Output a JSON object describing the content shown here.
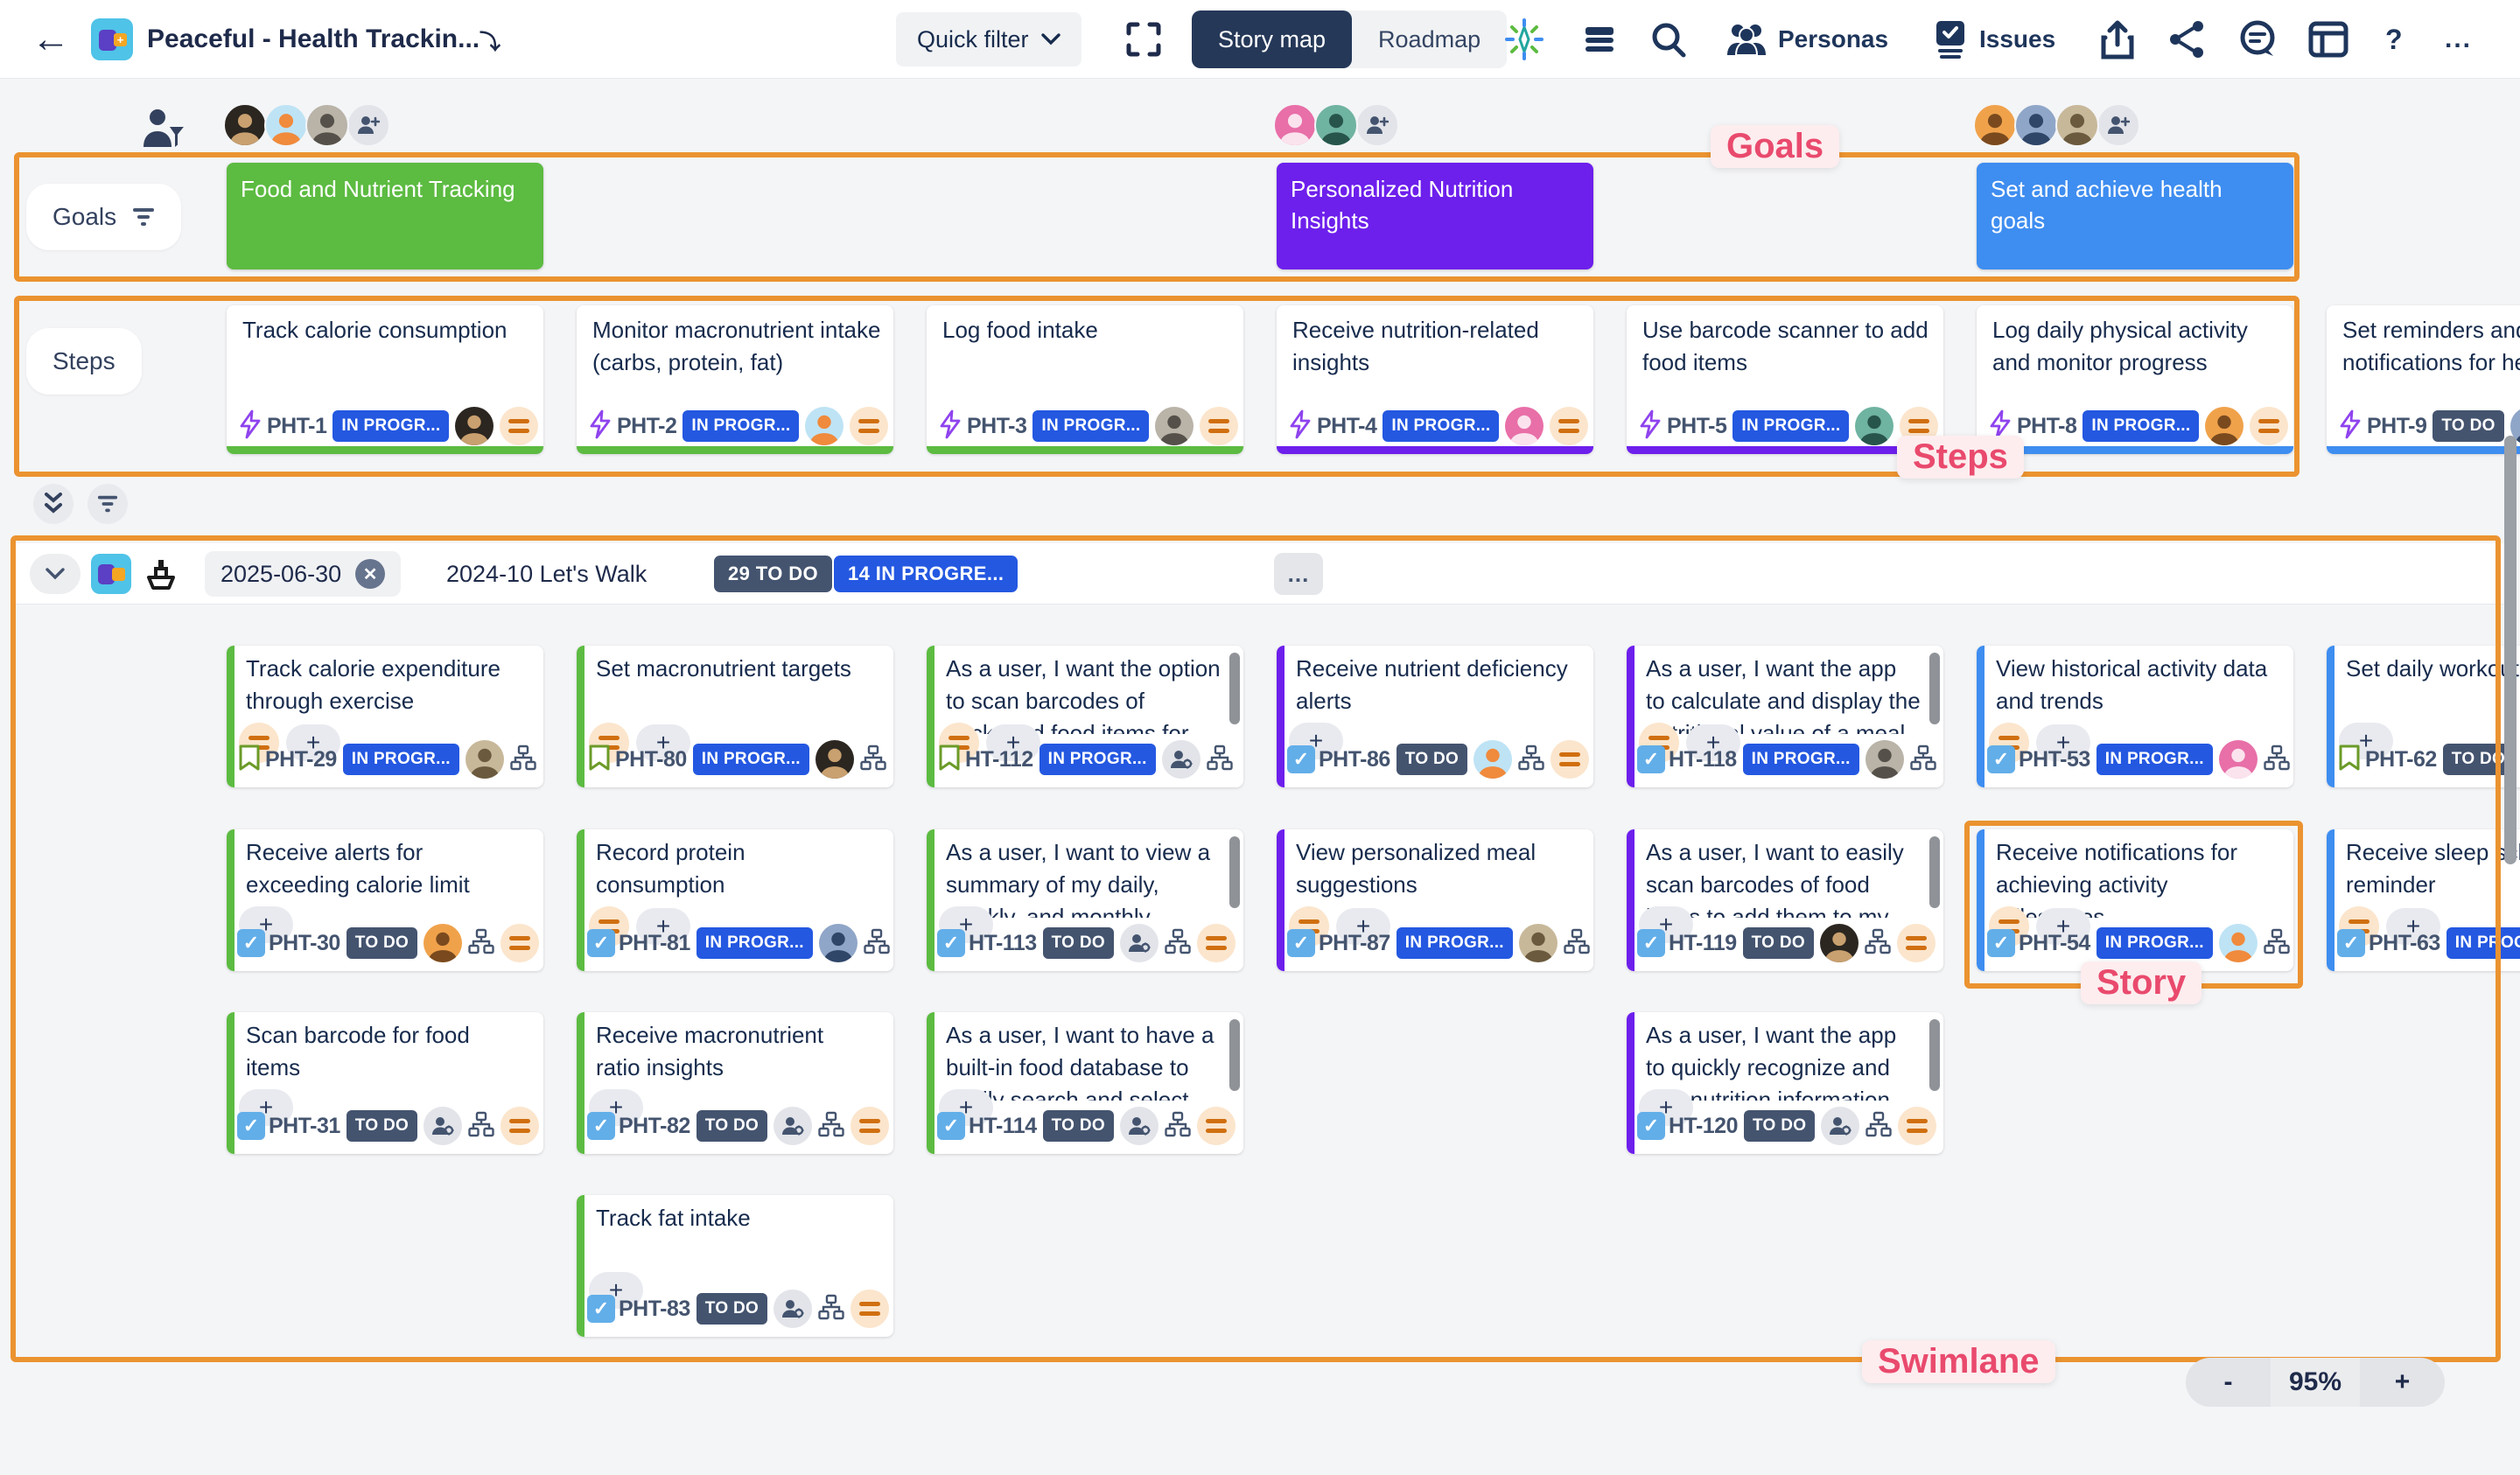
{
  "topbar": {
    "title": "Peaceful - Health Trackin...",
    "quick_filter": "Quick filter",
    "view_toggle": {
      "story_map": "Story map",
      "roadmap": "Roadmap"
    },
    "personas": "Personas",
    "issues": "Issues",
    "help": "?",
    "more": "..."
  },
  "board": {
    "goals_row_label": "Goals",
    "steps_row_label": "Steps",
    "goals": [
      {
        "title": "Food and Nutrient Tracking",
        "color": "green",
        "col": 1,
        "avatars": 3
      },
      {
        "title": "Personalized Nutrition Insights",
        "color": "purple",
        "col": 4,
        "avatars": 2
      },
      {
        "title": "Set and achieve health goals",
        "color": "blue",
        "col": 6,
        "avatars": 3
      }
    ],
    "steps": [
      {
        "col": 1,
        "title": "Track calorie consumption",
        "id": "PHT-1",
        "status": "IN PROGR...",
        "status_type": "inprogress",
        "color": "green"
      },
      {
        "col": 2,
        "title": "Monitor macronutrient intake (carbs, protein, fat)",
        "id": "PHT-2",
        "status": "IN PROGR...",
        "status_type": "inprogress",
        "color": "green"
      },
      {
        "col": 3,
        "title": "Log food intake",
        "id": "PHT-3",
        "status": "IN PROGR...",
        "status_type": "inprogress",
        "color": "green"
      },
      {
        "col": 4,
        "title": "Receive nutrition-related insights",
        "id": "PHT-4",
        "status": "IN PROGR...",
        "status_type": "inprogress",
        "color": "purple"
      },
      {
        "col": 5,
        "title": "Use barcode scanner to add food items",
        "id": "PHT-5",
        "status": "IN PROGR...",
        "status_type": "inprogress",
        "color": "purple"
      },
      {
        "col": 6,
        "title": "Log daily physical activity and monitor progress",
        "id": "PHT-8",
        "status": "IN PROGR...",
        "status_type": "inprogress",
        "color": "blue"
      },
      {
        "col": 7,
        "title": "Set reminders and notifications for he",
        "id": "PHT-9",
        "status": "TO DO",
        "status_type": "todo",
        "color": "blue"
      }
    ],
    "swimlane": {
      "date_filter": "2025-06-30",
      "name": "2024-10 Let's Walk",
      "todo_count": "29 TO DO",
      "in_progress_count": "14 IN PROGRE...",
      "more": "...",
      "stories": [
        {
          "row": 1,
          "col": 1,
          "title": "Track calorie expenditure through exercise",
          "id": "PHT-29",
          "status": "IN PROGR...",
          "status_type": "inprogress",
          "accent": "green",
          "icon": "bookmark",
          "assignee": "avatar",
          "eq_mid": true,
          "eq_end": false,
          "scrollbar": false
        },
        {
          "row": 1,
          "col": 2,
          "title": "Set macronutrient targets",
          "id": "PHT-80",
          "status": "IN PROGR...",
          "status_type": "inprogress",
          "accent": "green",
          "icon": "bookmark",
          "assignee": "avatar",
          "eq_mid": true,
          "eq_end": false,
          "scrollbar": false
        },
        {
          "row": 1,
          "col": 3,
          "title": "As a user, I want the option to scan barcodes of packaged food items for",
          "id": "HT-112",
          "status": "IN PROGR...",
          "status_type": "inprogress",
          "accent": "green",
          "icon": "bookmark",
          "assignee": "person-gear",
          "eq_mid": true,
          "eq_end": false,
          "scrollbar": true
        },
        {
          "row": 1,
          "col": 4,
          "title": "Receive nutrient deficiency alerts",
          "id": "PHT-86",
          "status": "TO DO",
          "status_type": "todo",
          "accent": "purple",
          "icon": "check",
          "assignee": "avatar",
          "eq_mid": false,
          "eq_end": true,
          "scrollbar": false
        },
        {
          "row": 1,
          "col": 5,
          "title": "As a user, I want the app to calculate and display the nutritional value of a meal",
          "id": "HT-118",
          "status": "IN PROGR...",
          "status_type": "inprogress",
          "accent": "purple",
          "icon": "check",
          "assignee": "avatar",
          "eq_mid": true,
          "eq_end": false,
          "scrollbar": true
        },
        {
          "row": 1,
          "col": 6,
          "title": "View historical activity data and trends",
          "id": "PHT-53",
          "status": "IN PROGR...",
          "status_type": "inprogress",
          "accent": "blue",
          "icon": "check",
          "assignee": "avatar",
          "eq_mid": true,
          "eq_end": false,
          "scrollbar": false
        },
        {
          "row": 1,
          "col": 7,
          "title": "Set daily workout",
          "id": "PHT-62",
          "status": "TO DO",
          "status_type": "todo",
          "accent": "blue",
          "icon": "bookmark",
          "assignee": "avatar",
          "eq_mid": false,
          "eq_end": false,
          "scrollbar": false
        },
        {
          "row": 2,
          "col": 1,
          "title": "Receive alerts for exceeding calorie limit",
          "id": "PHT-30",
          "status": "TO DO",
          "status_type": "todo",
          "accent": "green",
          "icon": "check",
          "assignee": "avatar",
          "eq_mid": false,
          "eq_end": true,
          "scrollbar": false
        },
        {
          "row": 2,
          "col": 2,
          "title": "Record protein consumption",
          "id": "PHT-81",
          "status": "IN PROGR...",
          "status_type": "inprogress",
          "accent": "green",
          "icon": "check",
          "assignee": "avatar",
          "eq_mid": true,
          "eq_end": false,
          "scrollbar": false
        },
        {
          "row": 2,
          "col": 3,
          "title": "As a user, I want to view a summary of my daily, weekly, and monthly",
          "id": "HT-113",
          "status": "TO DO",
          "status_type": "todo",
          "accent": "green",
          "icon": "check",
          "assignee": "person-gear",
          "eq_mid": false,
          "eq_end": true,
          "scrollbar": true
        },
        {
          "row": 2,
          "col": 4,
          "title": "View personalized meal suggestions",
          "id": "PHT-87",
          "status": "IN PROGR...",
          "status_type": "inprogress",
          "accent": "purple",
          "icon": "check",
          "assignee": "avatar",
          "eq_mid": true,
          "eq_end": false,
          "scrollbar": false
        },
        {
          "row": 2,
          "col": 5,
          "title": "As a user, I want to easily scan barcodes of food items to add them to my nutrition",
          "id": "HT-119",
          "status": "TO DO",
          "status_type": "todo",
          "accent": "purple",
          "icon": "check",
          "assignee": "avatar",
          "eq_mid": false,
          "eq_end": true,
          "scrollbar": true
        },
        {
          "row": 2,
          "col": 6,
          "title": "Receive notifications for achieving activity milestones",
          "id": "PHT-54",
          "status": "IN PROGR...",
          "status_type": "inprogress",
          "accent": "blue",
          "icon": "check",
          "assignee": "avatar",
          "eq_mid": true,
          "eq_end": false,
          "scrollbar": false
        },
        {
          "row": 2,
          "col": 7,
          "title": "Receive sleep sche reminder",
          "id": "PHT-63",
          "status": "IN PROGR...",
          "status_type": "inprogress",
          "accent": "blue",
          "icon": "check",
          "assignee": "avatar",
          "eq_mid": true,
          "eq_end": false,
          "scrollbar": false
        },
        {
          "row": 3,
          "col": 1,
          "title": "Scan barcode for food items",
          "id": "PHT-31",
          "status": "TO DO",
          "status_type": "todo",
          "accent": "green",
          "icon": "check",
          "assignee": "person-gear",
          "eq_mid": false,
          "eq_end": true,
          "scrollbar": false
        },
        {
          "row": 3,
          "col": 2,
          "title": "Receive macronutrient ratio insights",
          "id": "PHT-82",
          "status": "TO DO",
          "status_type": "todo",
          "accent": "green",
          "icon": "check",
          "assignee": "person-gear",
          "eq_mid": false,
          "eq_end": true,
          "scrollbar": false
        },
        {
          "row": 3,
          "col": 3,
          "title": "As a user, I want to have a built-in food database to easily search and select the",
          "id": "HT-114",
          "status": "TO DO",
          "status_type": "todo",
          "accent": "green",
          "icon": "check",
          "assignee": "person-gear",
          "eq_mid": false,
          "eq_end": true,
          "scrollbar": true
        },
        {
          "row": 3,
          "col": 5,
          "title": "As a user, I want the app to quickly recognize and add nutrition information from",
          "id": "HT-120",
          "status": "TO DO",
          "status_type": "todo",
          "accent": "purple",
          "icon": "check",
          "assignee": "person-gear",
          "eq_mid": false,
          "eq_end": true,
          "scrollbar": true
        },
        {
          "row": 4,
          "col": 2,
          "title": "Track fat intake",
          "id": "PHT-83",
          "status": "TO DO",
          "status_type": "todo",
          "accent": "green",
          "icon": "check",
          "assignee": "person-gear",
          "eq_mid": false,
          "eq_end": true,
          "scrollbar": false
        }
      ]
    }
  },
  "annotations": {
    "goals": "Goals",
    "steps": "Steps",
    "story": "Story",
    "swimlane": "Swimlane"
  },
  "zoom_control": {
    "minus": "-",
    "level": "95%",
    "plus": "+"
  },
  "colors": {
    "green": "#5CBB41",
    "purple": "#6D1FEC",
    "blue": "#3E8DF0",
    "annotation_orange": "#EB9330",
    "annotation_pink": "#E94A6D",
    "badge_inprogress": "#2458E1",
    "badge_todo": "#44546F",
    "avatar_palette": [
      [
        "#2B2620",
        "#C9A06F"
      ],
      [
        "#BEE3F5",
        "#F08A3C"
      ],
      [
        "#B9B3A8",
        "#55514A"
      ],
      [
        "#E86FA8",
        "#FBE3EE"
      ],
      [
        "#6FB3A1",
        "#28554B"
      ],
      [
        "#F0A24B",
        "#7A4A1E"
      ],
      [
        "#8FA6C8",
        "#2F4668"
      ],
      [
        "#C8B89A",
        "#6B5A3E"
      ]
    ]
  }
}
